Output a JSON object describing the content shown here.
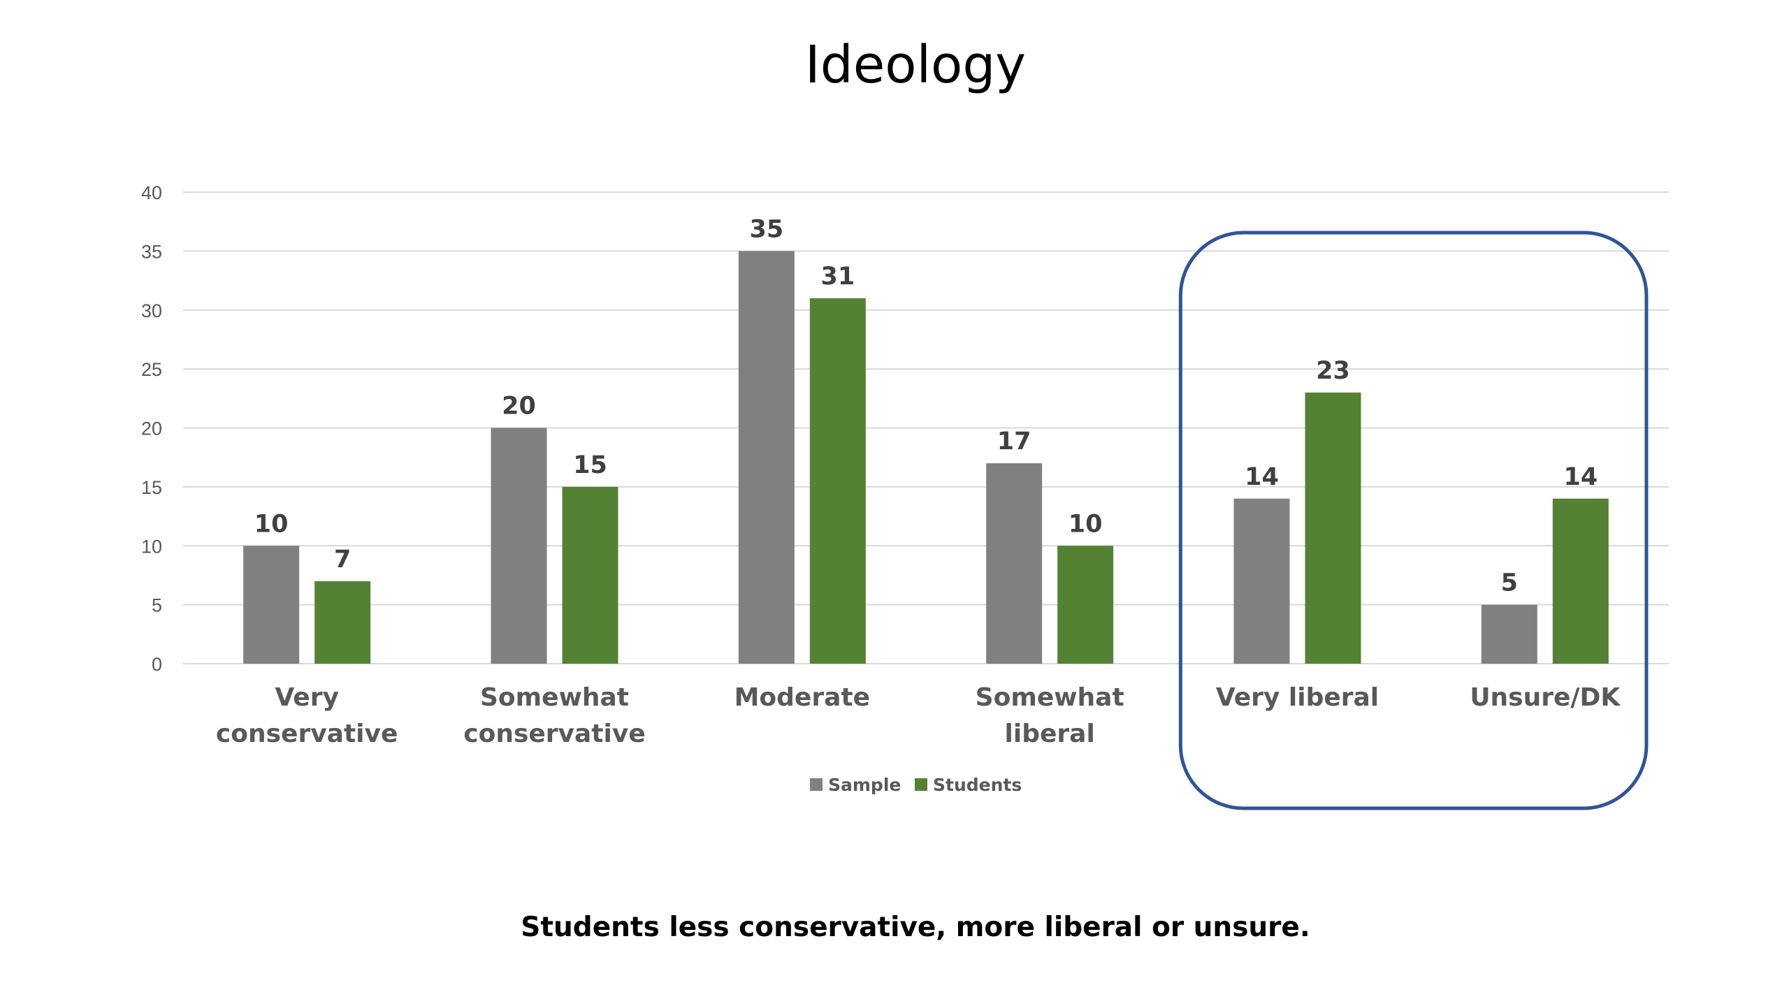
{
  "chart_data": {
    "type": "bar",
    "title": "Ideology",
    "categories": [
      "Very conservative",
      "Somewhat conservative",
      "Moderate",
      "Somewhat liberal",
      "Very liberal",
      "Unsure/DK"
    ],
    "series": [
      {
        "name": "Sample",
        "values": [
          10,
          20,
          35,
          17,
          14,
          5
        ],
        "color": "#808080"
      },
      {
        "name": "Students",
        "values": [
          7,
          15,
          31,
          10,
          23,
          14
        ],
        "color": "#548235"
      }
    ],
    "ylim": [
      0,
      40
    ],
    "yticks": [
      0,
      5,
      10,
      15,
      20,
      25,
      30,
      35,
      40
    ],
    "grid": true,
    "legend_position": "bottom",
    "highlight": {
      "categories": [
        "Very liberal",
        "Unsure/DK"
      ],
      "color": "#2F5597"
    },
    "caption": "Students less conservative, more liberal or unsure."
  }
}
